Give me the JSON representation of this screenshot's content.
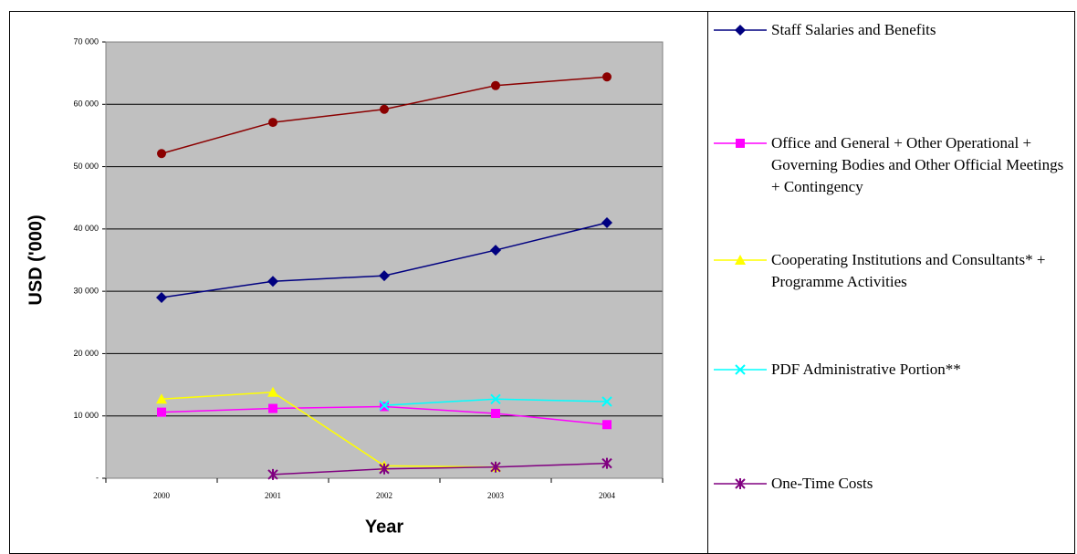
{
  "chart_data": {
    "type": "line",
    "x_label": "Year",
    "y_label": "USD ('000)",
    "categories": [
      "2000",
      "2001",
      "2002",
      "2003",
      "2004"
    ],
    "series": [
      {
        "color": "#8b0000",
        "marker": "circle",
        "values": [
          52100,
          57100,
          59200,
          63000,
          64400
        ]
      },
      {
        "name": "Staff Salaries and Benefits",
        "color": "#000080",
        "marker": "diamond",
        "values": [
          29000,
          31600,
          32500,
          36600,
          41000
        ]
      },
      {
        "name": "Office and General + Other Operational + Governing Bodies and Other Official Meetings + Contingency",
        "color": "#ff00ff",
        "marker": "square",
        "values": [
          10600,
          11200,
          11500,
          10400,
          8600
        ]
      },
      {
        "name": "Cooperating Institutions and Consultants* + Programme Activities",
        "color": "#ffff00",
        "marker": "triangle",
        "values": [
          12700,
          13800,
          2000,
          1800,
          null
        ]
      },
      {
        "name": "PDF Administrative Portion**",
        "color": "#00ffff",
        "marker": "x",
        "values": [
          null,
          null,
          11700,
          12700,
          12300
        ]
      },
      {
        "name": "One-Time Costs",
        "color": "#800080",
        "marker": "star",
        "values": [
          null,
          600,
          1500,
          1800,
          2400
        ]
      }
    ],
    "ylim": [
      0,
      70000
    ],
    "yticks": [
      {
        "value": 0,
        "label": "-"
      },
      {
        "value": 10000,
        "label": "10 000"
      },
      {
        "value": 20000,
        "label": "20 000"
      },
      {
        "value": 30000,
        "label": "30 000"
      },
      {
        "value": 40000,
        "label": "40 000"
      },
      {
        "value": 50000,
        "label": "50 000"
      },
      {
        "value": 60000,
        "label": "60 000"
      },
      {
        "value": 70000,
        "label": "70 000"
      }
    ],
    "grid": true,
    "background": "#c0c0c0",
    "legend": "right"
  }
}
